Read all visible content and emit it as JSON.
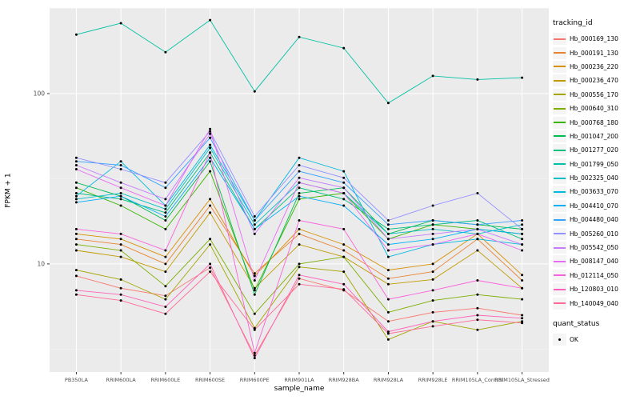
{
  "figure": {
    "background": "#FFFFFF",
    "panel_background": "#EBEBEB",
    "grid_major_color": "#FFFFFF",
    "grid_minor_color": "#F4F4F4",
    "tick_color": "#333333",
    "tick_label_color": "#4D4D4D",
    "point_color": "#000000"
  },
  "axes": {
    "x_title": "sample_name",
    "y_title": "FPKM + 1",
    "y_tick_labels": [
      "10",
      "100"
    ]
  },
  "legend": {
    "tracking_title": "tracking_id",
    "quant_title": "quant_status",
    "quant_items": [
      {
        "label": "OK",
        "marker": "point"
      }
    ]
  },
  "chart_data": {
    "type": "line",
    "title": "",
    "xlabel": "sample_name",
    "ylabel": "FPKM + 1",
    "yscale": "log10",
    "ylim": [
      2.32,
      318
    ],
    "yticks": [
      10,
      100
    ],
    "yminor": [
      3.162,
      31.62,
      316.2
    ],
    "grid": true,
    "legend_position": "right",
    "legend_title": "tracking_id",
    "point_marker": "OK",
    "categories": [
      "PB350LA",
      "RRIM600LA",
      "RRIM600LE",
      "RRIM600SE",
      "RRIM600PE",
      "RRIM901LA",
      "RRIM928BA",
      "RRIM928LA",
      "RRIM928LE",
      "RRIM105LA_Control",
      "RRIM105LA_Stressed"
    ],
    "series": [
      {
        "name": "Hb_000169_130",
        "color": "#F8766D",
        "values": [
          8.5,
          7.2,
          6.5,
          9.5,
          2.9,
          8.2,
          7.0,
          4.6,
          5.2,
          5.5,
          5.0
        ]
      },
      {
        "name": "Hb_000191_130",
        "color": "#EA8331",
        "values": [
          14,
          13,
          10,
          22,
          8.8,
          15,
          12,
          8.2,
          9.0,
          14,
          8.0
        ]
      },
      {
        "name": "Hb_000236_220",
        "color": "#D89000",
        "values": [
          15,
          14,
          11,
          24,
          8.5,
          16,
          13,
          9.2,
          10,
          15,
          8.6
        ]
      },
      {
        "name": "Hb_000236_470",
        "color": "#C09B00",
        "values": [
          12,
          11,
          9.0,
          20,
          7.2,
          13,
          11,
          7.6,
          8.1,
          12,
          7.2
        ]
      },
      {
        "name": "Hb_000556_170",
        "color": "#A3A500",
        "values": [
          9.2,
          8.1,
          6.2,
          13,
          4.2,
          9.6,
          9.0,
          3.6,
          4.6,
          4.1,
          4.6
        ]
      },
      {
        "name": "Hb_000640_310",
        "color": "#7CAE00",
        "values": [
          13,
          12,
          7.4,
          14,
          5.1,
          10,
          11,
          5.2,
          6.1,
          6.6,
          6.2
        ]
      },
      {
        "name": "Hb_000768_180",
        "color": "#39B600",
        "values": [
          28,
          22,
          16,
          35,
          7.0,
          24,
          26,
          14,
          17,
          16,
          15
        ]
      },
      {
        "name": "Hb_001047_200",
        "color": "#00BB4E",
        "values": [
          30,
          25,
          18,
          40,
          6.6,
          26,
          28,
          15,
          18,
          17,
          16
        ]
      },
      {
        "name": "Hb_001277_020",
        "color": "#00BF7D",
        "values": [
          26,
          24,
          20,
          45,
          16,
          28,
          24,
          16,
          17,
          18,
          14
        ]
      },
      {
        "name": "Hb_001799_050",
        "color": "#00C1A3",
        "values": [
          222,
          259,
          175,
          270,
          103,
          215,
          185,
          88,
          127,
          121,
          124
        ]
      },
      {
        "name": "Hb_002325_040",
        "color": "#00BFC4",
        "values": [
          24,
          26,
          21,
          48,
          17,
          30,
          26,
          15,
          16,
          15,
          17
        ]
      },
      {
        "name": "Hb_003633_070",
        "color": "#00BAE0",
        "values": [
          25,
          40,
          22,
          50,
          18,
          42,
          35,
          11,
          13,
          14,
          13
        ]
      },
      {
        "name": "Hb_004410_070",
        "color": "#00B0F6",
        "values": [
          23,
          25,
          19,
          42,
          16,
          25,
          22,
          13,
          14,
          16,
          15
        ]
      },
      {
        "name": "Hb_004480_040",
        "color": "#35A2FF",
        "values": [
          40,
          38,
          28,
          55,
          18,
          35,
          30,
          17,
          18,
          17,
          18
        ]
      },
      {
        "name": "Hb_005260_010",
        "color": "#9590FF",
        "values": [
          42,
          36,
          30,
          60,
          19,
          38,
          32,
          18,
          22,
          26,
          16
        ]
      },
      {
        "name": "Hb_005542_050",
        "color": "#C77CFF",
        "values": [
          38,
          30,
          24,
          58,
          15,
          32,
          28,
          14,
          15,
          16,
          13
        ]
      },
      {
        "name": "Hb_008147_040",
        "color": "#E76BF3",
        "values": [
          36,
          28,
          22,
          62,
          8.0,
          30,
          26,
          12,
          13,
          15,
          12
        ]
      },
      {
        "name": "Hb_012114_050",
        "color": "#FA62DB",
        "values": [
          16,
          15,
          12,
          45,
          3.0,
          18,
          16,
          6.2,
          7.0,
          8.0,
          7.2
        ]
      },
      {
        "name": "Hb_120803_010",
        "color": "#FF62BC",
        "values": [
          7.0,
          6.6,
          5.6,
          10,
          2.8,
          8.6,
          7.6,
          4.0,
          4.6,
          5.0,
          4.8
        ]
      },
      {
        "name": "Hb_140049_040",
        "color": "#FF6A98",
        "values": [
          6.6,
          6.1,
          5.1,
          9.0,
          4.1,
          7.6,
          7.1,
          3.9,
          4.3,
          4.7,
          4.5
        ]
      }
    ]
  }
}
